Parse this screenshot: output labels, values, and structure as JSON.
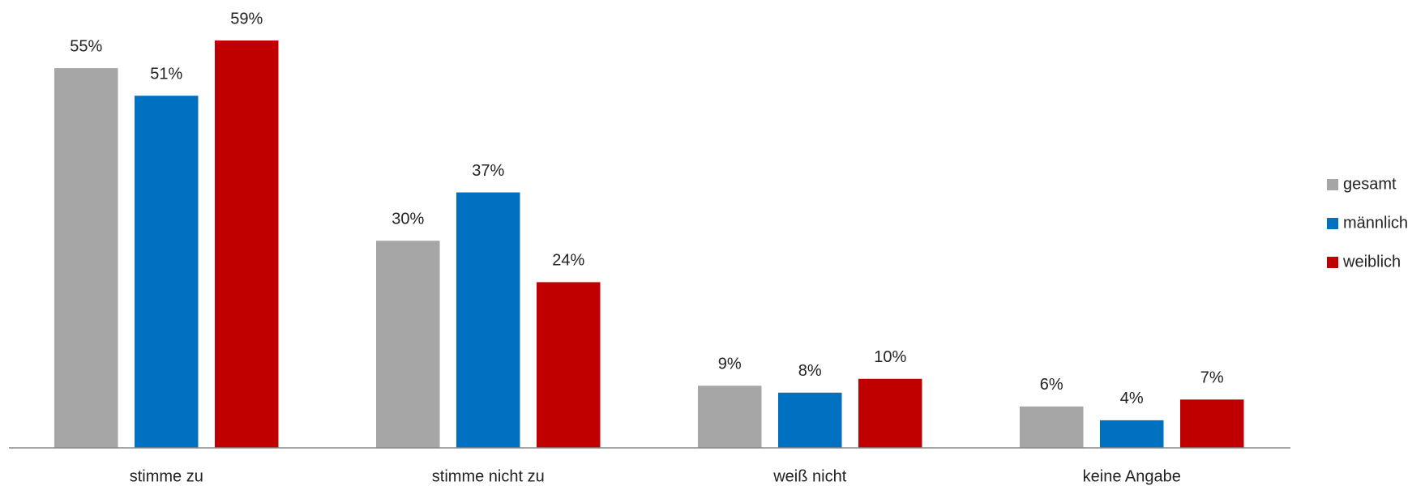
{
  "chart_data": {
    "type": "bar",
    "categories": [
      "stimme zu",
      "stimme nicht zu",
      "weiß nicht",
      "keine Angabe"
    ],
    "series": [
      {
        "name": "gesamt",
        "color": "#a6a6a6",
        "values": [
          55,
          30,
          9,
          6
        ],
        "value_labels": [
          "55%",
          "30%",
          "9%",
          "6%"
        ]
      },
      {
        "name": "männlich",
        "color": "#0070c0",
        "values": [
          51,
          37,
          8,
          4
        ],
        "value_labels": [
          "51%",
          "37%",
          "8%",
          "4%"
        ]
      },
      {
        "name": "weiblich",
        "color": "#c00000",
        "values": [
          59,
          24,
          10,
          7
        ],
        "value_labels": [
          "59%",
          "24%",
          "10%",
          "7%"
        ]
      }
    ],
    "legend": "right"
  }
}
